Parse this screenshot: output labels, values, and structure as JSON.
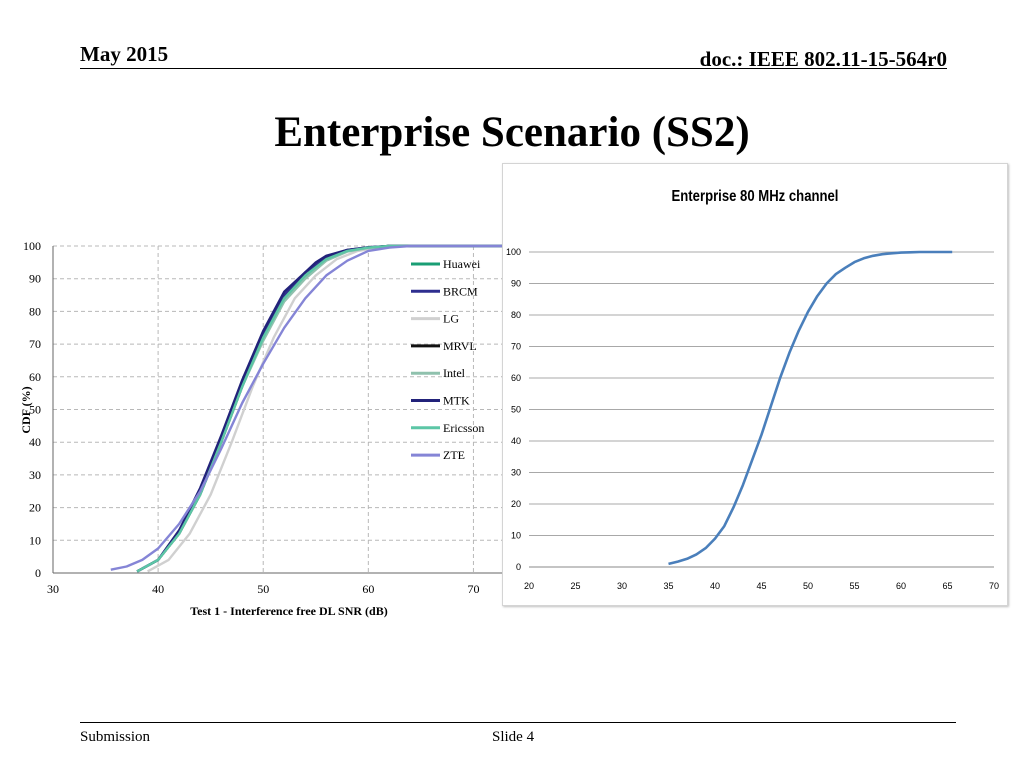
{
  "header": {
    "date": "May 2015",
    "doc": "doc.: IEEE 802.11-15-564r0"
  },
  "title": "Enterprise Scenario (SS2)",
  "footer": {
    "submission": "Submission",
    "slide": "Slide 4"
  },
  "chart_data": [
    {
      "type": "line",
      "title": "",
      "xlabel": "Test 1 - Interference free  DL SNR (dB)",
      "ylabel": "CDF (%)",
      "xlim": [
        30,
        75
      ],
      "ylim": [
        0,
        100
      ],
      "xticks": [
        30,
        40,
        50,
        60,
        70
      ],
      "yticks": [
        0,
        10,
        20,
        30,
        40,
        50,
        60,
        70,
        80,
        90,
        100
      ],
      "grid": "dashed",
      "legend": "top-right",
      "series": [
        {
          "name": "Huawei",
          "color": "#1a9e74",
          "x": [
            38,
            40,
            42,
            44,
            46,
            48,
            50,
            52,
            54,
            56,
            58,
            60,
            62,
            66,
            75
          ],
          "y": [
            0.5,
            4,
            12,
            24,
            40,
            57,
            72,
            84,
            91,
            96,
            98.5,
            99.5,
            100,
            100,
            100
          ]
        },
        {
          "name": "BRCM",
          "color": "#2e2e8f",
          "x": [
            38,
            40,
            42,
            44,
            46,
            48,
            50,
            52,
            54,
            56,
            58,
            60,
            62,
            66,
            75
          ],
          "y": [
            0.5,
            4,
            13,
            25,
            41,
            58,
            73,
            85,
            92,
            96.5,
            98.8,
            99.6,
            100,
            100,
            100
          ]
        },
        {
          "name": "LG",
          "color": "#d0d0d0",
          "x": [
            39,
            41,
            43,
            45,
            47,
            49,
            51,
            53,
            55,
            57,
            59,
            61,
            63,
            67,
            75
          ],
          "y": [
            0.5,
            4,
            12,
            24,
            40,
            57,
            72,
            84,
            91,
            96,
            98.5,
            99.5,
            100,
            100,
            100
          ]
        },
        {
          "name": "MRVL",
          "color": "#111111",
          "x": [
            38,
            40,
            42,
            44,
            46,
            48,
            50,
            52,
            54,
            56,
            58,
            60,
            62,
            66,
            75
          ],
          "y": [
            0.5,
            4,
            12,
            24,
            40,
            57,
            72,
            84,
            91,
            96,
            98.5,
            99.5,
            100,
            100,
            100
          ]
        },
        {
          "name": "Intel",
          "color": "#8fc1ad",
          "x": [
            38,
            40,
            42,
            44,
            46,
            48,
            50,
            52,
            54,
            56,
            58,
            60,
            62,
            66,
            75
          ],
          "y": [
            0.5,
            4,
            12,
            24,
            40,
            57,
            71,
            83,
            90,
            95.5,
            98.3,
            99.4,
            100,
            100,
            100
          ]
        },
        {
          "name": "MTK",
          "color": "#22227a",
          "x": [
            38,
            40,
            42,
            44,
            46,
            48,
            50,
            52,
            54,
            55,
            56,
            58,
            60,
            62,
            66,
            75
          ],
          "y": [
            0.5,
            4,
            13,
            26,
            42,
            59,
            74,
            86,
            92,
            95,
            97,
            98.8,
            99.6,
            100,
            100,
            100
          ]
        },
        {
          "name": "Ericsson",
          "color": "#5cc6a6",
          "x": [
            38,
            40,
            42,
            44,
            46,
            48,
            50,
            52,
            54,
            56,
            58,
            60,
            62,
            66,
            75
          ],
          "y": [
            0.5,
            4,
            12,
            24,
            40,
            57,
            72,
            84,
            91,
            96,
            98.5,
            99.5,
            100,
            100,
            100
          ]
        },
        {
          "name": "ZTE",
          "color": "#8585d6",
          "x": [
            35.5,
            37,
            38.5,
            40,
            42,
            44,
            46,
            48,
            50,
            52,
            54,
            56,
            58,
            60,
            62,
            64,
            66,
            75
          ],
          "y": [
            1,
            2,
            4,
            7.5,
            15,
            25,
            38,
            52,
            64,
            75,
            84,
            91,
            95.5,
            98.5,
            99.5,
            100,
            100,
            100
          ]
        }
      ]
    },
    {
      "type": "line",
      "title": "Enterprise 80 MHz channel",
      "xlabel": "",
      "ylabel": "",
      "xlim": [
        20,
        70
      ],
      "ylim": [
        0,
        100
      ],
      "xticks": [
        20,
        25,
        30,
        35,
        40,
        45,
        50,
        55,
        60,
        65,
        70
      ],
      "yticks": [
        0,
        10,
        20,
        30,
        40,
        50,
        60,
        70,
        80,
        90,
        100
      ],
      "grid": "horizontal",
      "legend": "none",
      "series": [
        {
          "name": "",
          "color": "#4a7fbb",
          "x": [
            35,
            36,
            37,
            38,
            39,
            40,
            41,
            42,
            43,
            44,
            45,
            46,
            47,
            48,
            49,
            50,
            51,
            52,
            53,
            54,
            55,
            56,
            57,
            58,
            59,
            60,
            61,
            62,
            63,
            64,
            65.5
          ],
          "y": [
            1,
            1.7,
            2.6,
            4,
            6,
            9,
            13,
            19,
            26,
            34,
            42,
            51,
            60,
            68,
            75,
            81,
            86,
            90,
            93,
            95,
            96.8,
            98,
            98.8,
            99.3,
            99.6,
            99.8,
            99.9,
            100,
            100,
            100,
            100
          ]
        }
      ]
    }
  ]
}
